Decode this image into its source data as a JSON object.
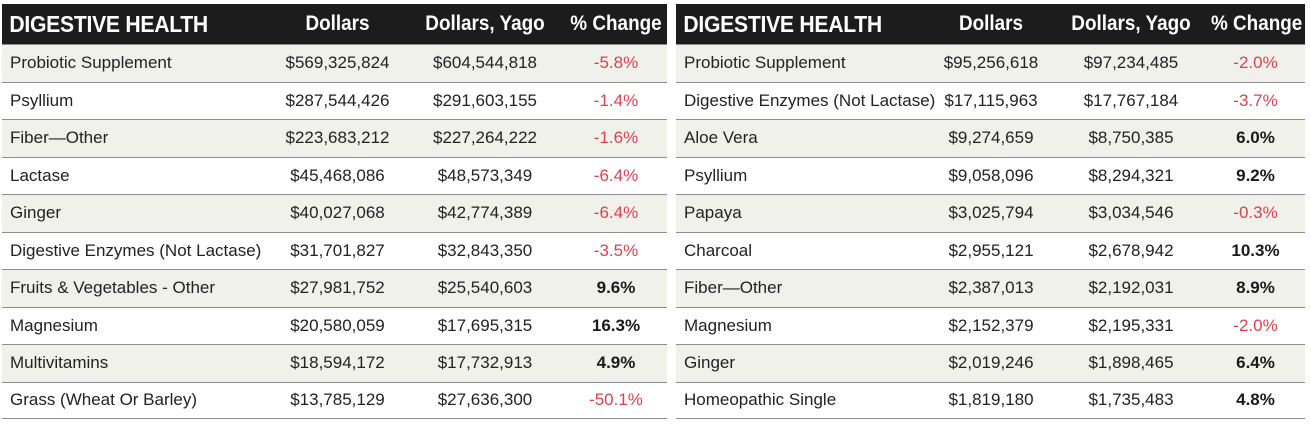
{
  "chart_data": [
    {
      "type": "table",
      "columns": [
        "DIGESTIVE HEALTH",
        "Dollars",
        "Dollars, Yago",
        "% Change"
      ],
      "rows": [
        [
          "Probiotic Supplement",
          "$569,325,824",
          "$604,544,818",
          "-5.8%"
        ],
        [
          "Psyllium",
          "$287,544,426",
          "$291,603,155",
          "-1.4%"
        ],
        [
          "Fiber—Other",
          "$223,683,212",
          "$227,264,222",
          "-1.6%"
        ],
        [
          "Lactase",
          "$45,468,086",
          "$48,573,349",
          "-6.4%"
        ],
        [
          "Ginger",
          "$40,027,068",
          "$42,774,389",
          "-6.4%"
        ],
        [
          "Digestive Enzymes (Not Lactase)",
          "$31,701,827",
          "$32,843,350",
          "-3.5%"
        ],
        [
          "Fruits & Vegetables - Other",
          "$27,981,752",
          "$25,540,603",
          "9.6%"
        ],
        [
          "Magnesium",
          "$20,580,059",
          "$17,695,315",
          "16.3%"
        ],
        [
          "Multivitamins",
          "$18,594,172",
          "$17,732,913",
          "4.9%"
        ],
        [
          "Grass (Wheat Or Barley)",
          "$13,785,129",
          "$27,636,300",
          "-50.1%"
        ]
      ]
    },
    {
      "type": "table",
      "columns": [
        "DIGESTIVE HEALTH",
        "Dollars",
        "Dollars, Yago",
        "% Change"
      ],
      "rows": [
        [
          "Probiotic Supplement",
          "$95,256,618",
          "$97,234,485",
          "-2.0%"
        ],
        [
          "Digestive Enzymes (Not Lactase)",
          "$17,115,963",
          "$17,767,184",
          "-3.7%"
        ],
        [
          "Aloe Vera",
          "$9,274,659",
          "$8,750,385",
          "6.0%"
        ],
        [
          "Psyllium",
          "$9,058,096",
          "$8,294,321",
          "9.2%"
        ],
        [
          "Papaya",
          "$3,025,794",
          "$3,034,546",
          "-0.3%"
        ],
        [
          "Charcoal",
          "$2,955,121",
          "$2,678,942",
          "10.3%"
        ],
        [
          "Fiber—Other",
          "$2,387,013",
          "$2,192,031",
          "8.9%"
        ],
        [
          "Magnesium",
          "$2,152,379",
          "$2,195,331",
          "-2.0%"
        ],
        [
          "Ginger",
          "$2,019,246",
          "$1,898,465",
          "6.4%"
        ],
        [
          "Homeopathic Single",
          "$1,819,180",
          "$1,735,483",
          "4.8%"
        ]
      ]
    }
  ],
  "colors": {
    "header_bg": "#1c1c1c",
    "header_text": "#ffffff",
    "row_alt_bg": "#f1f1ec",
    "negative_text": "#e0404e",
    "positive_text": "#1a1a1a",
    "rule": "#8d8d8d"
  }
}
